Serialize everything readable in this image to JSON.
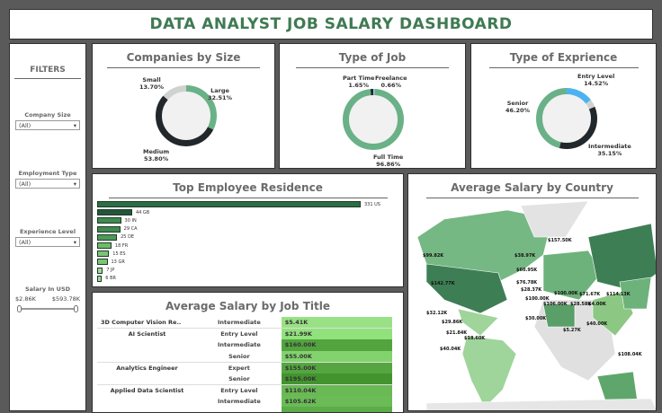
{
  "title": "DATA ANALYST JOB SALARY DASHBOARD",
  "filters": {
    "heading": "FILTERS",
    "company_size": {
      "label": "Company Size",
      "value": "(All)"
    },
    "employment_type": {
      "label": "Employment Type",
      "value": "(All)"
    },
    "experience_level": {
      "label": "Experience Level",
      "value": "(All)"
    },
    "salary": {
      "label": "Salary In USD",
      "min": "$2.86K",
      "max": "$593.78K"
    }
  },
  "colors": {
    "green": "#6ab187",
    "dark": "#22272b",
    "gray": "#cfd3cf",
    "blue": "#4db3f0",
    "title_green": "#3f7a52"
  },
  "companies": {
    "title": "Companies by Size",
    "slices": [
      {
        "label": "Large",
        "pct": "32.51%",
        "value": 32.51,
        "color": "#6ab187"
      },
      {
        "label": "Medium",
        "pct": "53.80%",
        "value": 53.8,
        "color": "#22272b"
      },
      {
        "label": "Small",
        "pct": "13.70%",
        "value": 13.7,
        "color": "#cfd3cf"
      }
    ]
  },
  "job_type": {
    "title": "Type of Job",
    "slices": [
      {
        "label": "Freelance",
        "pct": "0.66%",
        "value": 0.66,
        "color": "#9ecae8"
      },
      {
        "label": "Full Time",
        "pct": "96.86%",
        "value": 96.86,
        "color": "#6ab187"
      },
      {
        "label": "Part Time",
        "pct": "1.65%",
        "value": 1.65,
        "color": "#22272b"
      }
    ]
  },
  "experience": {
    "title": "Type of Exprience",
    "slices": [
      {
        "label": "Entry Level",
        "pct": "14.52%",
        "value": 14.52,
        "color": "#4db3f0"
      },
      {
        "label": "",
        "pct": "",
        "value": 4.13,
        "color": "#cfd3cf"
      },
      {
        "label": "Intermediate",
        "pct": "35.15%",
        "value": 35.15,
        "color": "#22272b"
      },
      {
        "label": "Senior",
        "pct": "46.20%",
        "value": 46.2,
        "color": "#6ab187"
      }
    ]
  },
  "residence": {
    "title": "Top Employee Residence",
    "bars": [
      {
        "code": "US",
        "value": 331
      },
      {
        "code": "GB",
        "value": 44
      },
      {
        "code": "IN",
        "value": 30
      },
      {
        "code": "CA",
        "value": 29
      },
      {
        "code": "DE",
        "value": 25
      },
      {
        "code": "FR",
        "value": 18
      },
      {
        "code": "ES",
        "value": 15
      },
      {
        "code": "GR",
        "value": 13
      },
      {
        "code": "JP",
        "value": 7
      },
      {
        "code": "BR",
        "value": 6
      }
    ]
  },
  "job_title": {
    "title": "Average Salary by Job Title",
    "rows": [
      {
        "title": "3D Computer Vision Re..",
        "level": "Intermediate",
        "salary": "$5.41K",
        "value": 5.41
      },
      {
        "title": "AI Scientist",
        "level": "Entry Level",
        "salary": "$21.99K",
        "value": 21.99
      },
      {
        "title": "",
        "level": "Intermediate",
        "salary": "$160.00K",
        "value": 160
      },
      {
        "title": "",
        "level": "Senior",
        "salary": "$55.00K",
        "value": 55
      },
      {
        "title": "Analytics Engineer",
        "level": "Expert",
        "salary": "$155.00K",
        "value": 155
      },
      {
        "title": "",
        "level": "Senior",
        "salary": "$195.00K",
        "value": 195
      },
      {
        "title": "Applied Data Scientist",
        "level": "Entry Level",
        "salary": "$110.04K",
        "value": 110.04
      },
      {
        "title": "",
        "level": "Intermediate",
        "salary": "$105.62K",
        "value": 105.62
      }
    ]
  },
  "map": {
    "title": "Average Salary by Country",
    "labels": [
      "$99.82K",
      "$142.77K",
      "$32.12K",
      "$29.86K",
      "$21.84K",
      "$18.60K",
      "$40.04K",
      "$38.97K",
      "$60.95K",
      "$76.78K",
      "$28.37K",
      "$100.00K",
      "$30.00K",
      "$5.27K",
      "$100.00K",
      "$106.00K",
      "$28.58K",
      "$157.50K",
      "$71.67K",
      "$114.13K",
      "$4.00K",
      "$40.00K",
      "$108.04K"
    ]
  }
}
